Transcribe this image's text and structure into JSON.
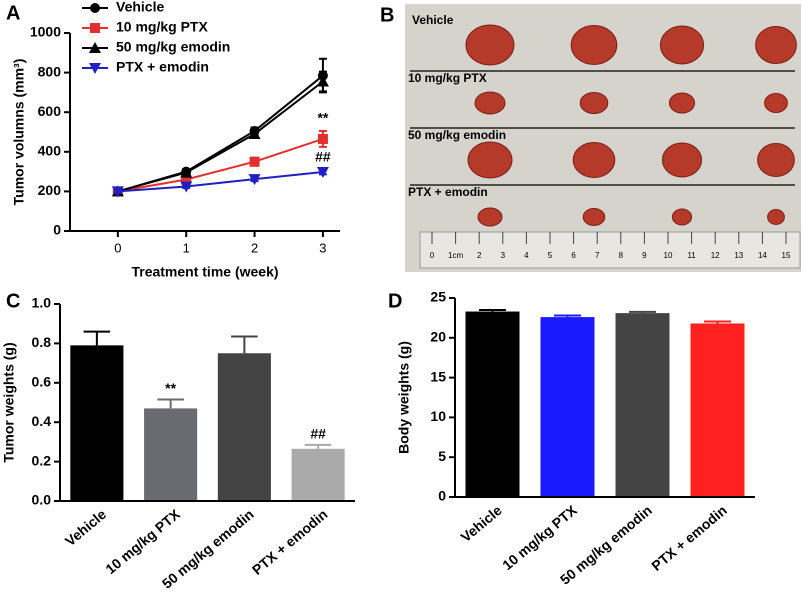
{
  "chart_data": [
    {
      "panel": "A",
      "type": "line",
      "xlabel": "Treatment time (week)",
      "ylabel": "Tumor volumns (mm³)",
      "x": [
        0,
        1,
        2,
        3
      ],
      "xlim": [
        -0.7,
        3.25
      ],
      "xticks": [
        0,
        1,
        2,
        3
      ],
      "ylim": [
        0,
        1000
      ],
      "yticks": [
        0,
        200,
        400,
        600,
        800,
        1000
      ],
      "legend": "upper left",
      "series": [
        {
          "name": "Vehicle",
          "color": "#000000",
          "marker": "circle",
          "values": [
            200,
            300,
            505,
            785
          ],
          "errors": [
            8,
            12,
            18,
            85
          ]
        },
        {
          "name": "10 mg/kg PTX",
          "color": "#e03030",
          "marker": "square",
          "values": [
            200,
            260,
            350,
            465
          ],
          "errors": [
            8,
            10,
            20,
            40
          ],
          "annotation": "**"
        },
        {
          "name": "50 mg/kg emodin",
          "color": "#000000",
          "marker": "triangle-up",
          "values": [
            200,
            295,
            490,
            755
          ],
          "errors": [
            8,
            10,
            15,
            50
          ]
        },
        {
          "name": "PTX + emodin",
          "color": "#2020c0",
          "marker": "triangle-down",
          "values": [
            200,
            225,
            262,
            298
          ],
          "errors": [
            8,
            8,
            10,
            12
          ],
          "annotation": "##"
        }
      ]
    },
    {
      "panel": "C",
      "type": "bar",
      "ylabel": "Tumor weights (g)",
      "categories": [
        "Vehicle",
        "10 mg/kg PTX",
        "50 mg/kg emodin",
        "PTX + emodin"
      ],
      "values": [
        0.79,
        0.47,
        0.75,
        0.265
      ],
      "errors": [
        0.07,
        0.045,
        0.085,
        0.02
      ],
      "annotations": [
        null,
        "**",
        null,
        "##"
      ],
      "colors": [
        "#000000",
        "#6a6a72",
        "#444444",
        "#aaaaaa"
      ],
      "ylim": [
        0,
        1.0
      ],
      "yticks": [
        {
          "value": 0,
          "label": "0.0"
        },
        0.2,
        0.4,
        0.6,
        0.8,
        {
          "value": 1,
          "label": "1.0"
        }
      ]
    },
    {
      "panel": "D",
      "type": "bar",
      "ylabel": "Body weights (g)",
      "categories": [
        "Vehicle",
        "10 mg/kg PTX",
        "50 mg/kg emodin",
        "PTX + emodin"
      ],
      "values": [
        23.3,
        22.6,
        23.1,
        21.8
      ],
      "errors": [
        0.2,
        0.2,
        0.15,
        0.25
      ],
      "annotations": [
        null,
        null,
        null,
        null
      ],
      "colors": [
        "#000000",
        "#1a1aff",
        "#444444",
        "#ff2020"
      ],
      "ylim": [
        0,
        25
      ],
      "yticks": [
        0,
        5,
        10,
        15,
        20,
        25
      ]
    }
  ],
  "photo": {
    "panel": "B",
    "groups": [
      "Vehicle",
      "10 mg/kg PTX",
      "50 mg/kg emodin",
      "PTX + emodin"
    ],
    "ruler_labels": [
      "0",
      "1cm",
      "2",
      "3",
      "4",
      "5",
      "6",
      "7",
      "8",
      "9",
      "10",
      "11",
      "12",
      "13",
      "14",
      "15"
    ]
  }
}
